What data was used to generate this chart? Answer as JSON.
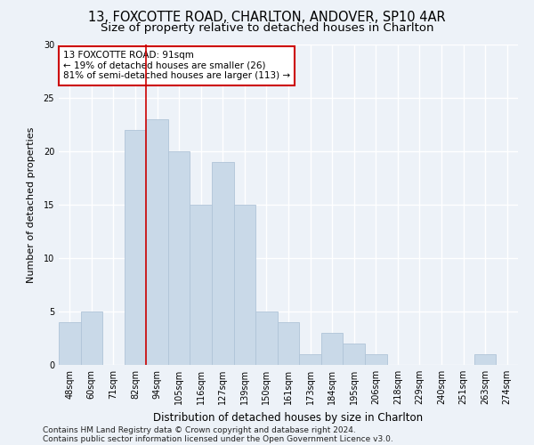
{
  "title1": "13, FOXCOTTE ROAD, CHARLTON, ANDOVER, SP10 4AR",
  "title2": "Size of property relative to detached houses in Charlton",
  "xlabel": "Distribution of detached houses by size in Charlton",
  "ylabel": "Number of detached properties",
  "categories": [
    "48sqm",
    "60sqm",
    "71sqm",
    "82sqm",
    "94sqm",
    "105sqm",
    "116sqm",
    "127sqm",
    "139sqm",
    "150sqm",
    "161sqm",
    "173sqm",
    "184sqm",
    "195sqm",
    "206sqm",
    "218sqm",
    "229sqm",
    "240sqm",
    "251sqm",
    "263sqm",
    "274sqm"
  ],
  "values": [
    4,
    5,
    0,
    22,
    23,
    20,
    15,
    19,
    15,
    5,
    4,
    1,
    3,
    2,
    1,
    0,
    0,
    0,
    0,
    1,
    0
  ],
  "bar_color": "#c9d9e8",
  "bar_edge_color": "#b0c4d8",
  "vline_x": 3.5,
  "vline_color": "#cc0000",
  "annotation_text": "13 FOXCOTTE ROAD: 91sqm\n← 19% of detached houses are smaller (26)\n81% of semi-detached houses are larger (113) →",
  "annotation_box_facecolor": "#ffffff",
  "annotation_box_edgecolor": "#cc0000",
  "ylim": [
    0,
    30
  ],
  "yticks": [
    0,
    5,
    10,
    15,
    20,
    25,
    30
  ],
  "footnote1": "Contains HM Land Registry data © Crown copyright and database right 2024.",
  "footnote2": "Contains public sector information licensed under the Open Government Licence v3.0.",
  "bg_color": "#edf2f8",
  "plot_bg_color": "#edf2f8",
  "grid_color": "#ffffff",
  "title1_fontsize": 10.5,
  "title2_fontsize": 9.5,
  "xlabel_fontsize": 8.5,
  "ylabel_fontsize": 8,
  "tick_fontsize": 7,
  "annotation_fontsize": 7.5,
  "footnote_fontsize": 6.5
}
